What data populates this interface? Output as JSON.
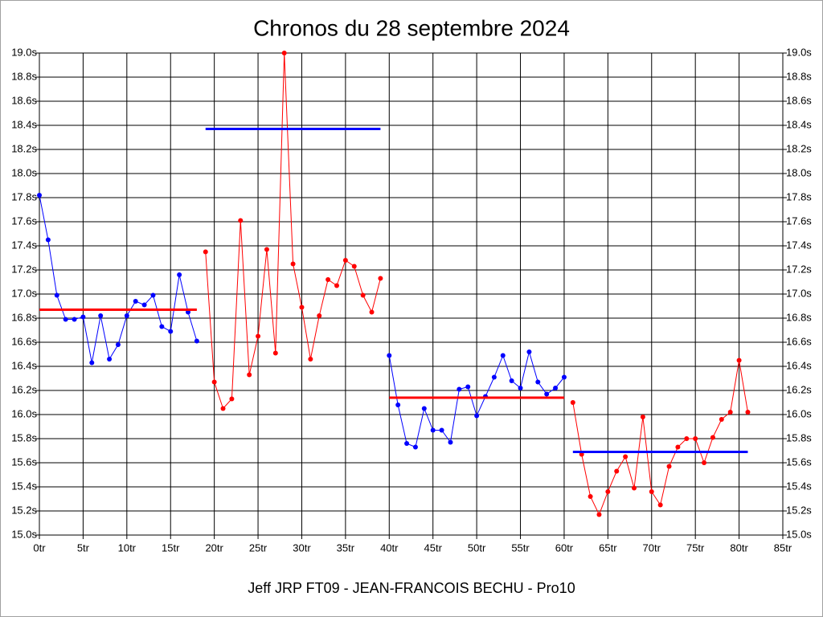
{
  "chart_data": {
    "type": "line",
    "title": "Chronos du 28 septembre 2024",
    "xlabel": "Jeff JRP FT09 - JEAN-FRANCOIS BECHU - Pro10",
    "grid": true,
    "xlim": [
      0,
      85
    ],
    "ylim": [
      15,
      19
    ],
    "xticks": [
      {
        "value": 0,
        "label": "0tr"
      },
      {
        "value": 5,
        "label": "5tr"
      },
      {
        "value": 10,
        "label": "10tr"
      },
      {
        "value": 15,
        "label": "15tr"
      },
      {
        "value": 20,
        "label": "20tr"
      },
      {
        "value": 25,
        "label": "25tr"
      },
      {
        "value": 30,
        "label": "30tr"
      },
      {
        "value": 35,
        "label": "35tr"
      },
      {
        "value": 40,
        "label": "40tr"
      },
      {
        "value": 45,
        "label": "45tr"
      },
      {
        "value": 50,
        "label": "50tr"
      },
      {
        "value": 55,
        "label": "55tr"
      },
      {
        "value": 60,
        "label": "60tr"
      },
      {
        "value": 65,
        "label": "65tr"
      },
      {
        "value": 70,
        "label": "70tr"
      },
      {
        "value": 75,
        "label": "75tr"
      },
      {
        "value": 80,
        "label": "80tr"
      },
      {
        "value": 85,
        "label": "85tr"
      }
    ],
    "yticks": [
      {
        "value": 15.0,
        "label": "15.0s"
      },
      {
        "value": 15.2,
        "label": "15.2s"
      },
      {
        "value": 15.4,
        "label": "15.4s"
      },
      {
        "value": 15.6,
        "label": "15.6s"
      },
      {
        "value": 15.8,
        "label": "15.8s"
      },
      {
        "value": 16.0,
        "label": "16.0s"
      },
      {
        "value": 16.2,
        "label": "16.2s"
      },
      {
        "value": 16.4,
        "label": "16.4s"
      },
      {
        "value": 16.6,
        "label": "16.6s"
      },
      {
        "value": 16.8,
        "label": "16.8s"
      },
      {
        "value": 17.0,
        "label": "17.0s"
      },
      {
        "value": 17.2,
        "label": "17.2s"
      },
      {
        "value": 17.4,
        "label": "17.4s"
      },
      {
        "value": 17.6,
        "label": "17.6s"
      },
      {
        "value": 17.8,
        "label": "17.8s"
      },
      {
        "value": 18.0,
        "label": "18.0s"
      },
      {
        "value": 18.2,
        "label": "18.2s"
      },
      {
        "value": 18.4,
        "label": "18.4s"
      },
      {
        "value": 18.6,
        "label": "18.6s"
      },
      {
        "value": 18.8,
        "label": "18.8s"
      },
      {
        "value": 19.0,
        "label": "19.0s"
      }
    ],
    "series": [
      {
        "color": "#0000ff",
        "markers": true,
        "x": [
          0,
          1,
          2,
          3,
          4,
          5,
          6,
          7,
          8,
          9,
          10,
          11,
          12,
          13,
          14,
          15,
          16,
          17,
          18
        ],
        "values": [
          17.82,
          17.45,
          16.99,
          16.79,
          16.79,
          16.81,
          16.43,
          16.82,
          16.46,
          16.58,
          16.82,
          16.94,
          16.91,
          16.99,
          16.73,
          16.69,
          17.16,
          16.85,
          16.61
        ]
      },
      {
        "color": "#ff0000",
        "markers": true,
        "x": [
          19,
          20,
          21,
          22,
          23,
          24,
          25,
          26,
          27,
          28,
          29,
          30,
          31,
          32,
          33,
          34,
          35,
          36,
          37,
          38,
          39
        ],
        "values": [
          17.35,
          16.27,
          16.05,
          16.13,
          17.61,
          16.33,
          16.65,
          17.37,
          16.51,
          19.0,
          17.25,
          16.89,
          16.46,
          16.82,
          17.12,
          17.07,
          17.28,
          17.23,
          16.99,
          16.85,
          17.13
        ]
      },
      {
        "color": "#0000ff",
        "markers": true,
        "x": [
          40,
          41,
          42,
          43,
          44,
          45,
          46,
          47,
          48,
          49,
          50,
          51,
          52,
          53,
          54,
          55,
          56,
          57,
          58,
          59,
          60
        ],
        "values": [
          16.49,
          16.08,
          15.76,
          15.73,
          16.05,
          15.87,
          15.87,
          15.77,
          16.21,
          16.23,
          15.99,
          16.15,
          16.31,
          16.49,
          16.28,
          16.22,
          16.52,
          16.27,
          16.17,
          16.22,
          16.31
        ]
      },
      {
        "color": "#ff0000",
        "markers": true,
        "x": [
          61,
          62,
          63,
          64,
          65,
          66,
          67,
          68,
          69,
          70,
          71,
          72,
          73,
          74,
          75,
          76,
          77,
          78,
          79,
          80,
          81
        ],
        "values": [
          16.1,
          15.67,
          15.32,
          15.17,
          15.36,
          15.53,
          15.65,
          15.39,
          15.98,
          15.36,
          15.25,
          15.57,
          15.73,
          15.8,
          15.8,
          15.6,
          15.81,
          15.96,
          16.02,
          16.45,
          16.02
        ]
      },
      {
        "color": "#ff0000",
        "markers": false,
        "x": [
          0,
          18
        ],
        "values": [
          16.87,
          16.87
        ]
      },
      {
        "color": "#0000ff",
        "markers": false,
        "x": [
          19,
          39
        ],
        "values": [
          18.37,
          18.37
        ]
      },
      {
        "color": "#ff0000",
        "markers": false,
        "x": [
          40,
          60
        ],
        "values": [
          16.14,
          16.14
        ]
      },
      {
        "color": "#0000ff",
        "markers": false,
        "x": [
          61,
          81
        ],
        "values": [
          15.69,
          15.69
        ]
      }
    ]
  }
}
